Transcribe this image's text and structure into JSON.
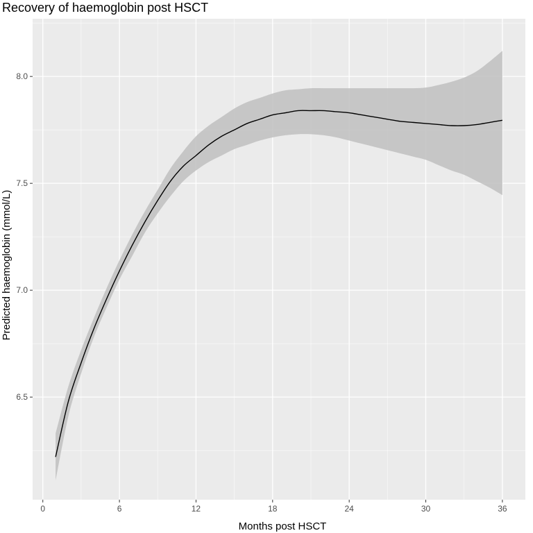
{
  "chart_data": {
    "type": "line",
    "title": "Recovery of haemoglobin post HSCT",
    "xlabel": "Months post HSCT",
    "ylabel": "Predicted haemoglobin (mmol/L)",
    "xlim": [
      -0.8,
      37.8
    ],
    "ylim": [
      6.02,
      8.27
    ],
    "x_ticks": [
      0,
      6,
      12,
      18,
      24,
      30,
      36
    ],
    "y_ticks": [
      6.5,
      7.0,
      7.5,
      8.0
    ],
    "x_tick_labels": [
      "0",
      "6",
      "12",
      "18",
      "24",
      "30",
      "36"
    ],
    "y_tick_labels": [
      "6.5",
      "7.0",
      "7.5",
      "8.0"
    ],
    "grid": true,
    "legend": "none",
    "series": [
      {
        "x": [
          1,
          2,
          3,
          4,
          5,
          6,
          7,
          8,
          9,
          10,
          11,
          12,
          13,
          14,
          15,
          16,
          17,
          18,
          19,
          20,
          21,
          22,
          23,
          24,
          25,
          26,
          27,
          28,
          29,
          30,
          31,
          32,
          33,
          34,
          35,
          36
        ],
        "y": [
          6.22,
          6.48,
          6.66,
          6.82,
          6.96,
          7.09,
          7.21,
          7.32,
          7.42,
          7.51,
          7.58,
          7.63,
          7.68,
          7.72,
          7.75,
          7.78,
          7.8,
          7.82,
          7.83,
          7.84,
          7.84,
          7.84,
          7.835,
          7.83,
          7.82,
          7.81,
          7.8,
          7.79,
          7.785,
          7.78,
          7.775,
          7.77,
          7.77,
          7.775,
          7.785,
          7.795
        ],
        "lower": [
          6.11,
          6.41,
          6.61,
          6.78,
          6.92,
          7.05,
          7.16,
          7.27,
          7.36,
          7.44,
          7.51,
          7.56,
          7.6,
          7.63,
          7.66,
          7.68,
          7.7,
          7.715,
          7.725,
          7.73,
          7.73,
          7.725,
          7.715,
          7.7,
          7.685,
          7.67,
          7.655,
          7.64,
          7.625,
          7.61,
          7.585,
          7.56,
          7.54,
          7.51,
          7.48,
          7.445
        ],
        "upper": [
          6.33,
          6.55,
          6.72,
          6.87,
          7.01,
          7.14,
          7.26,
          7.37,
          7.47,
          7.57,
          7.65,
          7.72,
          7.77,
          7.81,
          7.85,
          7.88,
          7.9,
          7.92,
          7.935,
          7.94,
          7.945,
          7.945,
          7.945,
          7.945,
          7.945,
          7.945,
          7.945,
          7.945,
          7.945,
          7.948,
          7.96,
          7.975,
          7.995,
          8.025,
          8.07,
          8.12
        ]
      }
    ],
    "colors": {
      "panel_bg": "#ebebeb",
      "grid_major": "#ffffff",
      "ribbon": "#bfbfbf",
      "line": "#000000",
      "tick_text": "#4d4d4d"
    }
  }
}
